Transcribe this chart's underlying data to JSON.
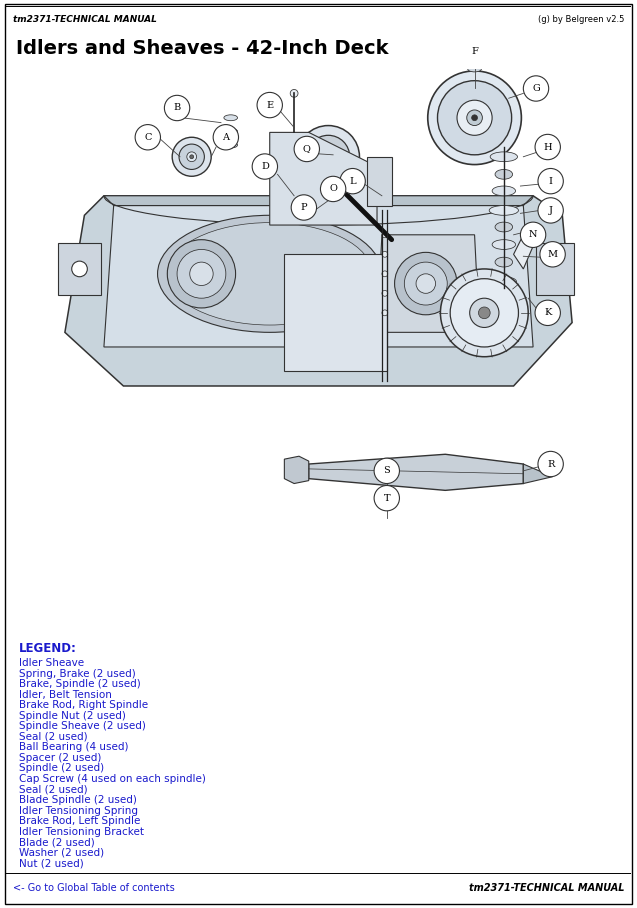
{
  "title": "Idlers and Sheaves - 42-Inch Deck",
  "header_left": "tm2371-TECHNICAL MANUAL",
  "header_right": "(g) by Belgreen v2.5",
  "footer_left": "<- Go to Global Table of contents",
  "footer_right": "tm2371-TECHNICAL MANUAL",
  "background_color": "#ffffff",
  "legend_color": "#1a1acc",
  "legend_title": "LEGEND:",
  "legend_items": [
    "Idler Sheave",
    "Spring, Brake (2 used)",
    "Brake, Spindle (2 used)",
    "Idler, Belt Tension",
    "Brake Rod, Right Spindle",
    "Spindle Nut (2 used)",
    "Spindle Sheave (2 used)",
    "Seal (2 used)",
    "Ball Bearing (4 used)",
    "Spacer (2 used)",
    "Spindle (2 used)",
    "Cap Screw (4 used on each spindle)",
    "Seal (2 used)",
    "Blade Spindle (2 used)",
    "Idler Tensioning Spring",
    "Brake Rod, Left Spindle",
    "Idler Tensioning Bracket",
    "Blade (2 used)",
    "Washer (2 used)",
    "Nut (2 used)"
  ],
  "deck_fill": "#d8dfe8",
  "deck_edge": "#333333",
  "part_fill": "#e8edf2",
  "part_edge": "#333333",
  "line_color": "#222222",
  "label_bg": "#ffffff",
  "label_fg": "#000000"
}
